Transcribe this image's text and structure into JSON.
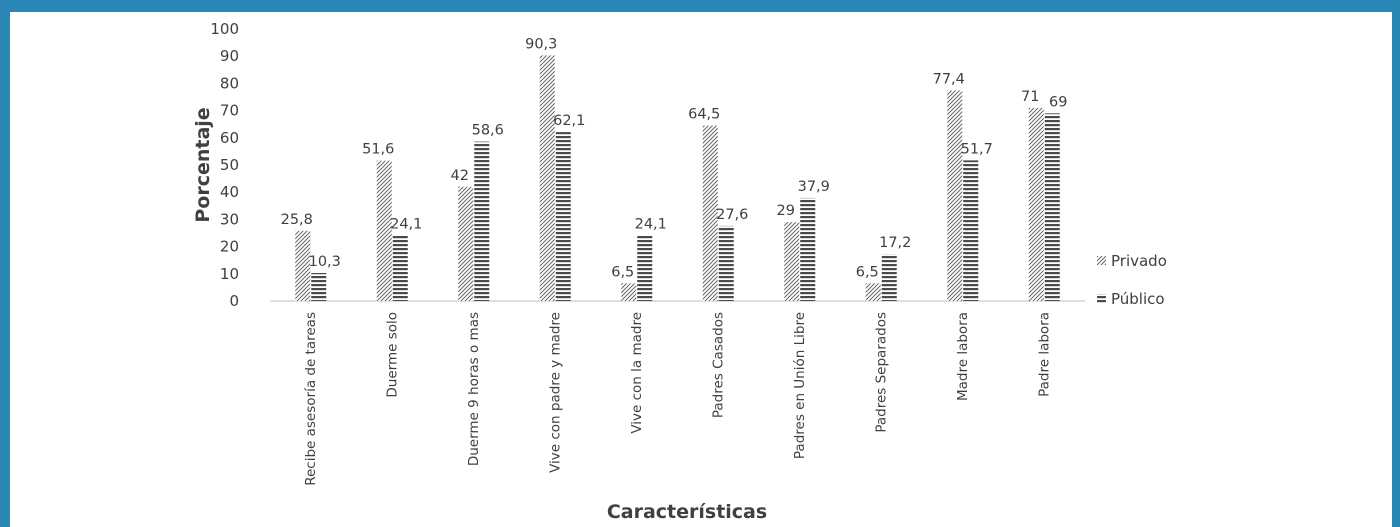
{
  "chart_data": {
    "type": "bar",
    "title": "",
    "xlabel": "Características",
    "ylabel": "Porcentaje",
    "ylim": [
      0,
      100
    ],
    "yticks": [
      0,
      10,
      20,
      30,
      40,
      50,
      60,
      70,
      80,
      90,
      100
    ],
    "grid": false,
    "legend_position": "right",
    "categories": [
      "Recibe asesoría de tareas",
      "Duerme solo",
      "Duerme 9 horas o mas",
      "Vive con padre y madre",
      "Vive con la madre",
      "Padres Casados",
      "Padres en Unión Libre",
      "Padres Separados",
      "Madre labora",
      "Padre labora"
    ],
    "series": [
      {
        "name": "Privado",
        "pattern": "diagonal-hatch",
        "color": "#404040",
        "values": [
          25.8,
          51.6,
          42,
          90.3,
          6.5,
          64.5,
          29,
          6.5,
          77.4,
          71
        ],
        "labels": [
          "25,8",
          "51,6",
          "42",
          "90,3",
          "6,5",
          "64,5",
          "29",
          "6,5",
          "77,4",
          "71"
        ]
      },
      {
        "name": "Público",
        "pattern": "horizontal-lines",
        "color": "#404040",
        "values": [
          10.3,
          24.1,
          58.6,
          62.1,
          24.1,
          27.6,
          37.9,
          17.2,
          51.7,
          69
        ],
        "labels": [
          "10,3",
          "24,1",
          "58,6",
          "62,1",
          "24,1",
          "27,6",
          "37,9",
          "17,2",
          "51,7",
          "69"
        ]
      }
    ]
  },
  "colors": {
    "frame": "#2a87b5",
    "background": "#ffffff",
    "text": "#404040",
    "axis": "#bfbfbf"
  }
}
